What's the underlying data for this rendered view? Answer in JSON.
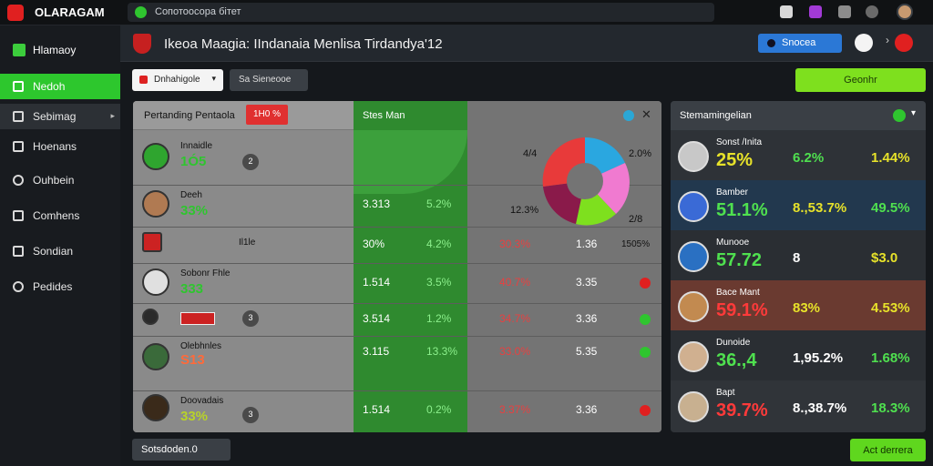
{
  "topbar": {
    "app_name": "OLARAGAM",
    "search_text": "Сопотоосора бітет"
  },
  "sidebar": {
    "brand": "Hlamaoy",
    "items": [
      {
        "label": "Nedoh",
        "state": "active"
      },
      {
        "label": "Sebimag",
        "state": "selected"
      },
      {
        "label": "Hoenans",
        "state": ""
      },
      {
        "label": "Ouhbein",
        "state": ""
      },
      {
        "label": "Comhens",
        "state": ""
      },
      {
        "label": "Sondian",
        "state": ""
      },
      {
        "label": "Pedides",
        "state": ""
      }
    ]
  },
  "header": {
    "title": "Ikeoa Maagia: IIndanaia Menlisa Tirdandya'12",
    "button_label": "Snocea"
  },
  "filters": {
    "select_value": "Dnhahigole",
    "button_label": "Sa Sieneooe",
    "cta_label": "Geonhr"
  },
  "panel": {
    "title": "Pertanding Pentaola",
    "badge": "1H0 %",
    "mid_header": "Stes Man",
    "rows": [
      {
        "team": "Innaidle",
        "val": "1Ó5",
        "stat": "2",
        "c2a": "",
        "c2b": "",
        "c3a": "",
        "c3b": "",
        "dot": ""
      },
      {
        "team": "Deeh",
        "val": "33%",
        "stat": "",
        "c2a": "3.313",
        "c2b": "5.2%",
        "c3a": "",
        "c3b": "",
        "dot": ""
      },
      {
        "team": "Il1le",
        "val": "",
        "stat": "",
        "c2a": "30%",
        "c2b": "4.2%",
        "c3a": "30.3%",
        "c3b": "1.36",
        "dot": "1505%"
      },
      {
        "team": "Sobonr Fhle",
        "val": "333",
        "stat": "",
        "c2a": "1.514",
        "c2b": "3.5%",
        "c3a": "40.7%",
        "c3b": "3.35",
        "dot": "red"
      },
      {
        "team": "",
        "val": "",
        "stat": "3",
        "c2a": "3.514",
        "c2b": "1.2%",
        "c3a": "34.7%",
        "c3b": "3.36",
        "dot": "green"
      },
      {
        "team": "Olebhnles",
        "val": "S13",
        "stat": "",
        "c2a": "3.115",
        "c2b": "13.3%",
        "c3a": "33.0%",
        "c3b": "5.35",
        "dot": "green"
      },
      {
        "team": "Doovadais",
        "val": "33%",
        "stat": "3",
        "c2a": "1.514",
        "c2b": "0.2%",
        "c3a": "3.37%",
        "c3b": "3.36",
        "dot": "red"
      }
    ],
    "pie_labels": {
      "tl": "4/4",
      "tr": "2.0%",
      "bl": "12.3%",
      "br": "2/8"
    }
  },
  "standings": {
    "title": "Stemamingelian",
    "rows": [
      {
        "name": "Sonst /Inita",
        "big": "25%",
        "s2": "6.2%",
        "s3": "1.44%",
        "big_color": "#e7e22a",
        "s2_color": "#4fe04f",
        "s3_color": "#e7e22a"
      },
      {
        "name": "Bamber",
        "big": "51.1%",
        "s2": "8.,53.7%",
        "s3": "49.5%",
        "big_color": "#4fe04f",
        "s2_color": "#e7e22a",
        "s3_color": "#4fe04f"
      },
      {
        "name": "Munooe",
        "big": "57.72",
        "s2": "8",
        "s3": "$3.0",
        "big_color": "#4fe04f",
        "s2_color": "#ffffff",
        "s3_color": "#e7e22a"
      },
      {
        "name": "Bace Mant",
        "big": "59.1%",
        "s2": "83%",
        "s3": "4.53%",
        "big_color": "#ff3a3a",
        "s2_color": "#e7e22a",
        "s3_color": "#e7e22a"
      },
      {
        "name": "Dunoide",
        "big": "36.,4",
        "s2": "1,95.2%",
        "s3": "1.68%",
        "big_color": "#4fe04f",
        "s2_color": "#ffffff",
        "s3_color": "#4fe04f"
      },
      {
        "name": "Bapt",
        "big": "39.7%",
        "s2": "8.,38.7%",
        "s3": "18.3%",
        "big_color": "#ff3a3a",
        "s2_color": "#ffffff",
        "s3_color": "#4fe04f"
      }
    ]
  },
  "footer": {
    "left_label": "Sotsdoden.0",
    "right_label": "Act derrera"
  }
}
